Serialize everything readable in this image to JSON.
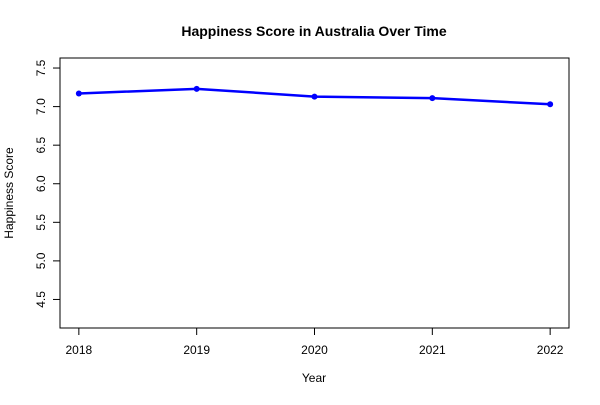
{
  "chart_data": {
    "type": "line",
    "title": "Happiness Score in Australia Over Time",
    "xlabel": "Year",
    "ylabel": "Happiness Score",
    "x": [
      2018,
      2019,
      2020,
      2021,
      2022
    ],
    "series": [
      {
        "values": [
          7.17,
          7.23,
          7.13,
          7.11,
          7.03
        ],
        "color": "#0000ff",
        "marker": "filled-circle"
      }
    ],
    "x_ticks": [
      "2018",
      "2019",
      "2020",
      "2021",
      "2022"
    ],
    "y_ticks": [
      "4.5",
      "5.0",
      "5.5",
      "6.0",
      "6.5",
      "7.0",
      "7.5"
    ],
    "xlim": [
      2017.84,
      2022.16
    ],
    "ylim": [
      4.13,
      7.63
    ],
    "grid": false,
    "box": true
  }
}
